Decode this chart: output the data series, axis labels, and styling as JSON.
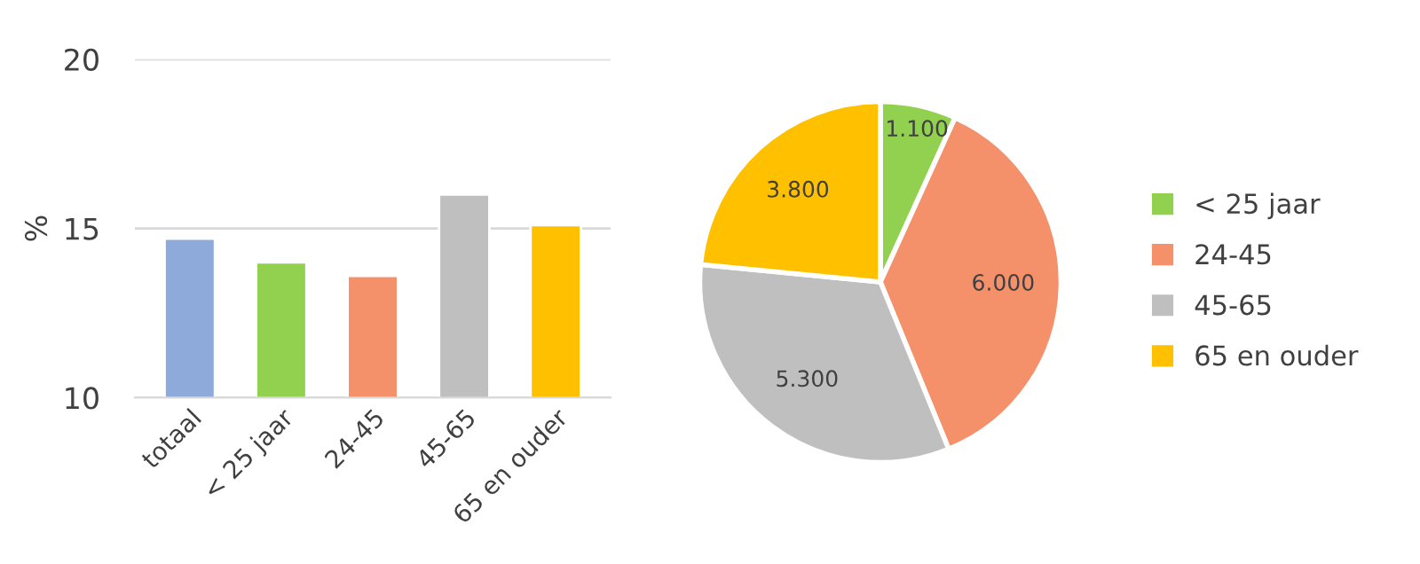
{
  "chart_data": [
    {
      "type": "bar",
      "ylabel": "%",
      "categories": [
        "totaal",
        "< 25 jaar",
        "24-45",
        "45-65",
        "65 en ouder"
      ],
      "values": [
        14.7,
        14.0,
        13.6,
        16.0,
        15.1
      ],
      "colors": [
        "#8eaadb",
        "#92d050",
        "#f4916b",
        "#bfbfbf",
        "#ffc000"
      ],
      "ylim": [
        10,
        20
      ],
      "yticks": [
        10,
        15,
        20
      ],
      "grid": "y"
    },
    {
      "type": "pie",
      "categories": [
        "< 25 jaar",
        "24-45",
        "45-65",
        "65 en ouder"
      ],
      "values": [
        1100,
        6000,
        5300,
        3800
      ],
      "value_labels": [
        "1.100",
        "6.000",
        "5.300",
        "3.800"
      ],
      "colors": [
        "#92d050",
        "#f4916b",
        "#bfbfbf",
        "#ffc000"
      ],
      "legend": "right"
    }
  ]
}
